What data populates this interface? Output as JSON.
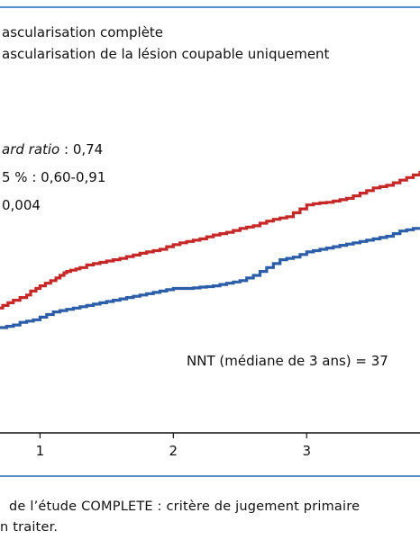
{
  "chart_data": {
    "type": "line",
    "legend": [
      {
        "label": "ascularisation complète",
        "color": "#2b5da8"
      },
      {
        "label": "ascularisation de la lésion coupable uniquement",
        "color": "#c62828"
      }
    ],
    "stats": {
      "hr_italic": "ard ratio",
      "hr_rest": " : 0,74",
      "ci": "5 % : 0,60-0,91",
      "p": "0,004"
    },
    "annotation": "NNT (médiane de 3 ans) = 37",
    "x_ticks": [
      "1",
      "2",
      "3"
    ],
    "xlim": [
      0.7,
      3.85
    ],
    "ylim": [
      0,
      1
    ],
    "series": [
      {
        "color": "#c62828",
        "x": [
          0.7,
          0.72,
          0.76,
          0.8,
          0.85,
          0.9,
          0.93,
          0.97,
          1.0,
          1.04,
          1.08,
          1.12,
          1.15,
          1.18,
          1.2,
          1.23,
          1.27,
          1.3,
          1.35,
          1.4,
          1.45,
          1.5,
          1.55,
          1.6,
          1.65,
          1.7,
          1.75,
          1.8,
          1.85,
          1.9,
          1.95,
          2.0,
          2.05,
          2.1,
          2.15,
          2.2,
          2.25,
          2.3,
          2.35,
          2.4,
          2.45,
          2.5,
          2.55,
          2.6,
          2.65,
          2.7,
          2.75,
          2.8,
          2.85,
          2.9,
          2.95,
          3.0,
          3.05,
          3.1,
          3.15,
          3.2,
          3.25,
          3.3,
          3.35,
          3.4,
          3.45,
          3.5,
          3.55,
          3.6,
          3.65,
          3.7,
          3.75,
          3.8,
          3.85
        ],
        "y": [
          0.475,
          0.485,
          0.495,
          0.505,
          0.515,
          0.525,
          0.54,
          0.55,
          0.56,
          0.57,
          0.58,
          0.59,
          0.6,
          0.61,
          0.615,
          0.62,
          0.625,
          0.63,
          0.64,
          0.645,
          0.65,
          0.655,
          0.66,
          0.665,
          0.672,
          0.678,
          0.685,
          0.69,
          0.695,
          0.7,
          0.71,
          0.718,
          0.725,
          0.73,
          0.735,
          0.74,
          0.748,
          0.755,
          0.76,
          0.765,
          0.772,
          0.78,
          0.785,
          0.79,
          0.8,
          0.808,
          0.815,
          0.82,
          0.825,
          0.84,
          0.855,
          0.87,
          0.875,
          0.878,
          0.88,
          0.885,
          0.89,
          0.895,
          0.905,
          0.915,
          0.925,
          0.935,
          0.94,
          0.945,
          0.955,
          0.965,
          0.975,
          0.985,
          1.0
        ]
      },
      {
        "color": "#2b5da8",
        "x": [
          0.7,
          0.75,
          0.8,
          0.85,
          0.9,
          0.95,
          1.0,
          1.05,
          1.1,
          1.15,
          1.2,
          1.25,
          1.3,
          1.35,
          1.4,
          1.45,
          1.5,
          1.55,
          1.6,
          1.65,
          1.7,
          1.75,
          1.8,
          1.85,
          1.9,
          1.95,
          2.0,
          2.05,
          2.1,
          2.15,
          2.2,
          2.25,
          2.3,
          2.35,
          2.4,
          2.45,
          2.5,
          2.55,
          2.6,
          2.65,
          2.7,
          2.75,
          2.8,
          2.85,
          2.9,
          2.95,
          3.0,
          3.05,
          3.1,
          3.15,
          3.2,
          3.25,
          3.3,
          3.35,
          3.4,
          3.45,
          3.5,
          3.55,
          3.6,
          3.65,
          3.7,
          3.75,
          3.8,
          3.85
        ],
        "y": [
          0.4,
          0.405,
          0.41,
          0.42,
          0.425,
          0.43,
          0.44,
          0.45,
          0.46,
          0.465,
          0.47,
          0.475,
          0.48,
          0.485,
          0.49,
          0.495,
          0.5,
          0.505,
          0.51,
          0.515,
          0.52,
          0.525,
          0.53,
          0.535,
          0.54,
          0.545,
          0.55,
          0.55,
          0.55,
          0.552,
          0.555,
          0.557,
          0.56,
          0.565,
          0.57,
          0.575,
          0.58,
          0.59,
          0.6,
          0.615,
          0.63,
          0.645,
          0.66,
          0.665,
          0.67,
          0.68,
          0.69,
          0.695,
          0.7,
          0.705,
          0.71,
          0.715,
          0.72,
          0.725,
          0.73,
          0.735,
          0.74,
          0.745,
          0.75,
          0.76,
          0.77,
          0.775,
          0.78,
          0.785
        ]
      }
    ]
  },
  "caption": {
    "line1": "de l’étude COMPLETE : critère de jugement primaire",
    "line2": "n traiter."
  }
}
